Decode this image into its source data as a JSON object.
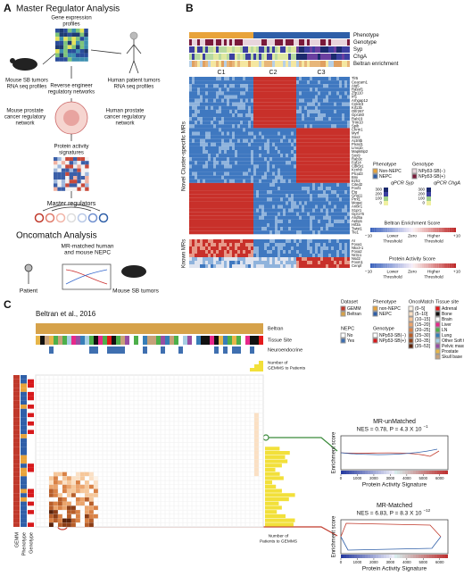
{
  "panel_a": {
    "label": "A",
    "title": "Master Regulator Analysis",
    "gene_expression": [
      "Gene expression",
      "profiles"
    ],
    "mouse_tumors": [
      "Mouse SB tumors",
      "RNA seq profiles"
    ],
    "human_tumors": [
      "Human patient tumors",
      "RNA seq profiles"
    ],
    "reverse": [
      "Reverse engineer",
      "regulatory networks"
    ],
    "mouse_network": [
      "Mouse prostate",
      "cancer regulatory",
      "network"
    ],
    "human_network": [
      "Human prostate",
      "cancer regulatory",
      "network"
    ],
    "protein": [
      "Protein activity",
      "signatures"
    ],
    "master": "Master regulators",
    "onco_title": "Oncomatch Analysis",
    "matched": [
      "MR-matched human",
      "and mouse NEPC"
    ],
    "patient": "Patient",
    "mouse_sb": "Mouse SB tumors"
  },
  "panel_b": {
    "label": "B",
    "rows": [
      "Phenotype",
      "Genotype",
      "Syp",
      "ChgA",
      "Beltran enrichment"
    ],
    "clusters": [
      "C1",
      "C2",
      "C3"
    ],
    "novel_label": "Novel Cluster-specific MRs",
    "known_label": "Known MRs",
    "novel_genes": [
      "Tlr5",
      "Ceacam1",
      "Atg5",
      "Rassf1",
      "Zfp110",
      "Irf1",
      "Arhgap12",
      "Cnksr3",
      "Kif13b",
      "Olfr267",
      "Gpr160",
      "Rab19",
      "Trim10",
      "Spib",
      "Chrm1",
      "Myrf",
      "Sox2",
      "Actr8b",
      "Plxnd1",
      "Lmx1b",
      "Mapk8ip2",
      "Sox9",
      "Rab3c",
      "Fgf14",
      "Cdk5r1",
      "Kcnh8",
      "Plcxd3",
      "Bmi",
      "Ezh2",
      "Cited2",
      "Foxf1",
      "Etg",
      "Gng11",
      "Prrx1",
      "Mogat",
      "Antxr1",
      "S1pr1",
      "Gpr176",
      "Arid5a",
      "Aebp1",
      "Hif3a",
      "Twist1",
      "Tie1"
    ],
    "known_genes": [
      "Ar",
      "Foxa1",
      "Nkx3-1",
      "Foxa2",
      "Nr3c1",
      "Nsd2",
      "Foxm1",
      "Cenpf"
    ],
    "phenotype_legend": {
      "title": "Phenotype",
      "items": [
        {
          "label": "Non-NEPC",
          "color": "#e8a33a"
        },
        {
          "label": "NEPC",
          "color": "#2f5fa8"
        }
      ]
    },
    "genotype_legend": {
      "title": "Genotype",
      "items": [
        {
          "label": "NPp53-SB(−)",
          "color": "#e8d5dc"
        },
        {
          "label": "NPp53-SB(+)",
          "color": "#7a1a3a"
        }
      ]
    },
    "syp_title": "qPCR Syp",
    "chga_title": "qPCR ChgA",
    "qpcr_ticks": [
      "300",
      "200",
      "100",
      "0"
    ],
    "beltran_title": "Beltran Enrichment Score",
    "protein_title": "Protein Activity Score",
    "scale_labels": [
      "−10",
      "Lower",
      "Zero",
      "Higher",
      "+10"
    ],
    "threshold": "Threshold"
  },
  "panel_c": {
    "label": "C",
    "source": "Beltran et al., 2016",
    "row_labels": [
      "Beltran",
      "Tissue Site",
      "Neuroendocrine"
    ],
    "gemms_to_patients": [
      "Number of",
      "GEMMS to Patients"
    ],
    "patients_to_gemms": [
      "Number of",
      "Patients to GEMMS"
    ],
    "side_labels": [
      "GEMM",
      "Phenotype",
      "Genotype"
    ],
    "dataset": {
      "title": "Dataset",
      "items": [
        {
          "label": "GEMM",
          "color": "#c0392b"
        },
        {
          "label": "Beltran",
          "color": "#d6a24a"
        }
      ]
    },
    "phenotype": {
      "title": "Phenotype",
      "items": [
        {
          "label": "non-NEPC",
          "color": "#e8a33a"
        },
        {
          "label": "NEPC",
          "color": "#2f5fa8"
        }
      ]
    },
    "nepc": {
      "title": "NEPC",
      "items": [
        {
          "label": "No",
          "color": "#ffffff"
        },
        {
          "label": "Yes",
          "color": "#3f6fb0"
        }
      ]
    },
    "genotype": {
      "title": "Genotype",
      "items": [
        {
          "label": "NPp53-SB(−)",
          "color": "#ffffff"
        },
        {
          "label": "NPp53-SB(+)",
          "color": "#d7191c"
        }
      ]
    },
    "oncomatch": {
      "title": "OncoMatch",
      "items": [
        {
          "label": "(0–5]",
          "color": "#fdf3e7"
        },
        {
          "label": "(5–10]",
          "color": "#fbe0c4"
        },
        {
          "label": "(10–15]",
          "color": "#f6c79a"
        },
        {
          "label": "(15–20]",
          "color": "#eba46c"
        },
        {
          "label": "(20–25]",
          "color": "#d98145"
        },
        {
          "label": "(25–30]",
          "color": "#b85e2a"
        },
        {
          "label": "(30–35]",
          "color": "#8c3e17"
        },
        {
          "label": "(35–53]",
          "color": "#5a220a"
        }
      ]
    },
    "tissue": {
      "title": "Tissue site",
      "items": [
        {
          "label": "Adrenal",
          "color": "#e41a1c"
        },
        {
          "label": "Bone",
          "color": "#111111"
        },
        {
          "label": "Brain",
          "color": "#ffffff"
        },
        {
          "label": "Liver",
          "color": "#e7298a"
        },
        {
          "label": "LN",
          "color": "#4daf4a"
        },
        {
          "label": "Lung",
          "color": "#377eb8"
        },
        {
          "label": "Other Soft tissue",
          "color": "#a6cee3"
        },
        {
          "label": "Pelvic mass",
          "color": "#984ea3"
        },
        {
          "label": "Prostate",
          "color": "#e7b64a"
        },
        {
          "label": "Skull base",
          "color": "#c7a17a"
        }
      ]
    },
    "plots": [
      {
        "title": "MR-unMatched",
        "stat": "NES = 0.78, P = 4.3 X 10",
        "exp": "−1"
      },
      {
        "title": "MR-Matched",
        "stat": "NES = 6.83, P = 8.3 X 10",
        "exp": "−12"
      }
    ],
    "y_label": "Enrichment score",
    "x_label": "Protein Activity Signature",
    "xticks": [
      0,
      1000,
      2000,
      3000,
      4000,
      5000,
      6000
    ],
    "xlim": [
      0,
      6500
    ]
  }
}
